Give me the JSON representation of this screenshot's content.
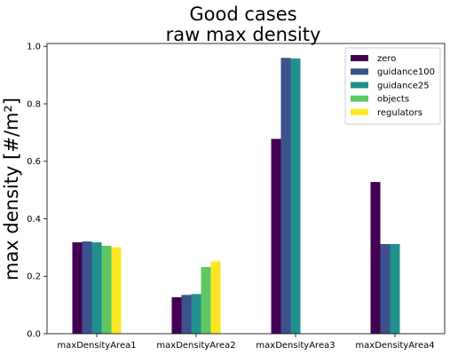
{
  "chart_data": {
    "type": "bar",
    "title": "Good cases",
    "subtitle": "raw max density",
    "xlabel": "",
    "ylabel": "max density [#/m²]",
    "ylim": [
      0,
      1.01
    ],
    "yticks": [
      "0.0",
      "0.2",
      "0.4",
      "0.6",
      "0.8",
      "1.0"
    ],
    "grid": false,
    "legend_position": "top-right",
    "categories": [
      "maxDensityArea1",
      "maxDensityArea2",
      "maxDensityArea3",
      "maxDensityArea4"
    ],
    "series": [
      {
        "name": "zero",
        "color": "#440154",
        "values": [
          0.318,
          0.127,
          0.678,
          0.528
        ]
      },
      {
        "name": "guidance100",
        "color": "#3b528b",
        "values": [
          0.321,
          0.135,
          0.96,
          0.312
        ]
      },
      {
        "name": "guidance25",
        "color": "#21908d",
        "values": [
          0.318,
          0.138,
          0.958,
          0.312
        ]
      },
      {
        "name": "objects",
        "color": "#5dc863",
        "values": [
          0.306,
          0.232,
          null,
          null
        ]
      },
      {
        "name": "regulators",
        "color": "#fde725",
        "values": [
          0.301,
          0.252,
          null,
          null
        ]
      }
    ]
  }
}
